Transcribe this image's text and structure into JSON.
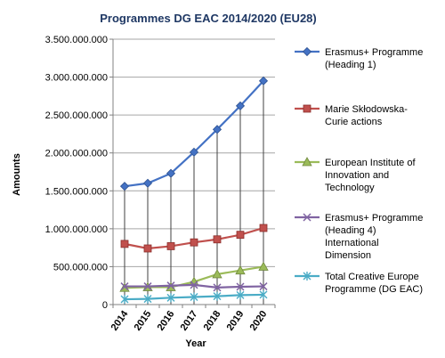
{
  "chart_data": {
    "type": "line",
    "title": "Programmes DG EAC 2014/2020 (EU28)",
    "xlabel": "Year",
    "ylabel": "Amounts",
    "x": [
      "2014",
      "2015",
      "2016",
      "2017",
      "2018",
      "2019",
      "2020"
    ],
    "ylim": [
      0,
      3500000000
    ],
    "yticks": [
      "0",
      "500.000.000",
      "1.000.000.000",
      "1.500.000.000",
      "2.000.000.000",
      "2.500.000.000",
      "3.000.000.000",
      "3.500.000.000"
    ],
    "drop_lines": true,
    "legend_position": "right",
    "series": [
      {
        "name_lines": [
          "Erasmus+ Programme",
          "(Heading 1)"
        ],
        "color": "#4472c4",
        "marker": "diamond",
        "values": [
          1560000000,
          1600000000,
          1730000000,
          2010000000,
          2310000000,
          2620000000,
          2950000000
        ]
      },
      {
        "name_lines": [
          "Marie Skłodowska-",
          "Curie actions"
        ],
        "color": "#c0504d",
        "marker": "square",
        "values": [
          800000000,
          740000000,
          770000000,
          820000000,
          860000000,
          920000000,
          1010000000
        ]
      },
      {
        "name_lines": [
          "European Institute of",
          "Innovation and",
          "Technology"
        ],
        "color": "#9bbb59",
        "marker": "triangle",
        "values": [
          220000000,
          230000000,
          230000000,
          300000000,
          400000000,
          450000000,
          500000000
        ]
      },
      {
        "name_lines": [
          "Erasmus+ Programme",
          "(Heading 4)",
          "International",
          "Dimension"
        ],
        "color": "#8064a2",
        "marker": "x",
        "values": [
          240000000,
          240000000,
          250000000,
          260000000,
          225000000,
          235000000,
          240000000
        ]
      },
      {
        "name_lines": [
          "Total Creative Europe",
          "Programme (DG EAC)"
        ],
        "color": "#4bacc6",
        "marker": "star",
        "values": [
          70000000,
          75000000,
          90000000,
          100000000,
          110000000,
          125000000,
          130000000
        ]
      }
    ]
  }
}
